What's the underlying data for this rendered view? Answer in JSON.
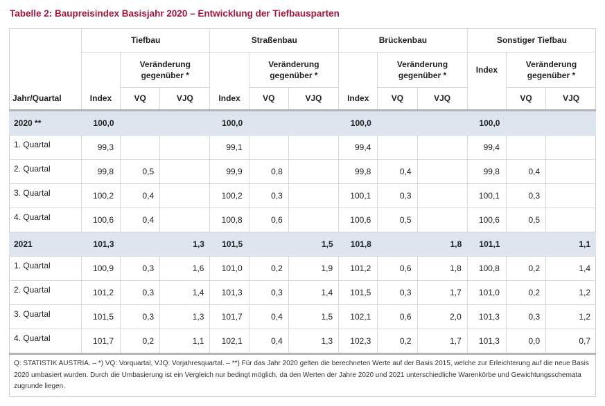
{
  "title": "Tabelle 2: Baupreisindex Basisjahr 2020 – Entwicklung der Tiefbausparten",
  "header": {
    "groups": [
      "Tiefbau",
      "Straßenbau",
      "Brückenbau",
      "Sonstiger Tiefbau"
    ],
    "change_label": "Veränderung gegenüber *",
    "row_label": "Jahr/Quartal",
    "index_label": "Index",
    "vq_label": "VQ",
    "vjq_label": "VJQ"
  },
  "rows": [
    {
      "label": "2020 **",
      "year": true,
      "cells": [
        "100,0",
        "",
        "",
        "100,0",
        "",
        "",
        "100,0",
        "",
        "",
        "100,0",
        "",
        ""
      ]
    },
    {
      "label": "1. Quartal",
      "year": false,
      "cells": [
        "99,3",
        "",
        "",
        "99,1",
        "",
        "",
        "99,4",
        "",
        "",
        "99,4",
        "",
        ""
      ]
    },
    {
      "label": "2. Quartal",
      "year": false,
      "cells": [
        "99,8",
        "0,5",
        "",
        "99,9",
        "0,8",
        "",
        "99,8",
        "0,4",
        "",
        "99,8",
        "0,4",
        ""
      ]
    },
    {
      "label": "3. Quartal",
      "year": false,
      "cells": [
        "100,2",
        "0,4",
        "",
        "100,2",
        "0,3",
        "",
        "100,1",
        "0,3",
        "",
        "100,1",
        "0,3",
        ""
      ]
    },
    {
      "label": "4. Quartal",
      "year": false,
      "cells": [
        "100,6",
        "0,4",
        "",
        "100,8",
        "0,6",
        "",
        "100,6",
        "0,5",
        "",
        "100,6",
        "0,5",
        ""
      ]
    },
    {
      "label": "2021",
      "year": true,
      "cells": [
        "101,3",
        "",
        "1,3",
        "101,5",
        "",
        "1,5",
        "101,8",
        "",
        "1,8",
        "101,1",
        "",
        "1,1"
      ]
    },
    {
      "label": "1. Quartal",
      "year": false,
      "cells": [
        "100,9",
        "0,3",
        "1,6",
        "101,0",
        "0,2",
        "1,9",
        "101,2",
        "0,6",
        "1,8",
        "100,8",
        "0,2",
        "1,4"
      ]
    },
    {
      "label": "2. Quartal",
      "year": false,
      "cells": [
        "101,2",
        "0,3",
        "1,4",
        "101,3",
        "0,3",
        "1,4",
        "101,5",
        "0,3",
        "1,7",
        "101,0",
        "0,2",
        "1,2"
      ]
    },
    {
      "label": "3. Quartal",
      "year": false,
      "cells": [
        "101,5",
        "0,3",
        "1,3",
        "101,7",
        "0,4",
        "1,5",
        "102,1",
        "0,6",
        "2,0",
        "101,3",
        "0,3",
        "1,2"
      ]
    },
    {
      "label": "4. Quartal",
      "year": false,
      "cells": [
        "101,7",
        "0,2",
        "1,1",
        "102,1",
        "0,4",
        "1,3",
        "102,3",
        "0,2",
        "1,7",
        "101,3",
        "0,0",
        "0,7"
      ]
    }
  ],
  "footnote": "Q: STATISTIK AUSTRIA. – *) VQ: Vorquartal, VJQ: Vorjahresquartal. – **) Für das Jahr 2020 gelten die berechneten Werte auf der Basis 2015, welche zur Erleichterung auf die neue Basis 2020 umbasiert wurden. Durch die Umbasierung ist ein Vergleich nur bedingt möglich, da den Werten der Jahre 2020 und 2021 unterschiedliche Warenkörbe und Gewichtungsschemata zugrunde liegen.",
  "colors": {
    "title": "#a3173e",
    "year_row_bg": "#dde5ef"
  }
}
